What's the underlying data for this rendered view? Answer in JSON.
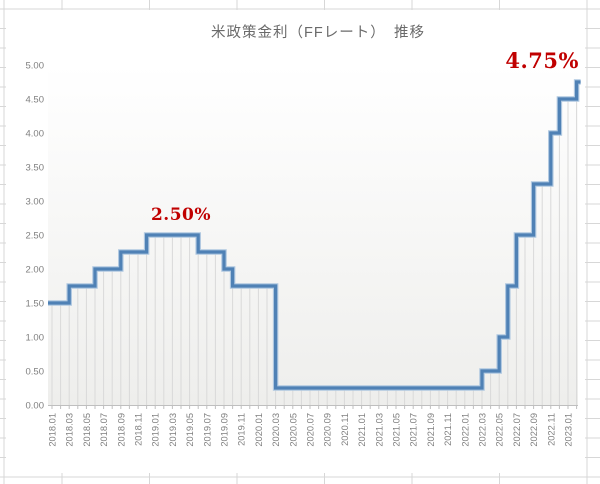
{
  "sheet": {
    "background_color": "#ffffff",
    "gridline_color": "#d7d7d7"
  },
  "chart": {
    "title": "米政策金利（FFレート）　推移",
    "annotations": [
      {
        "label": "2.50%",
        "x": "2019.04",
        "y": 2.5
      },
      {
        "label": "4.75%",
        "x": "2022.10",
        "y": 4.75
      }
    ],
    "colors": {
      "line": "#4f81b5",
      "line_halo": "#aec7e0",
      "annotation_red": "#c00000",
      "axis_label": "#7f7f7f",
      "title_gray": "#6a6a6a",
      "droplines": "#d9d9d9",
      "axis_line": "#bfbfbf",
      "plot_bg_top": "#ffffff",
      "plot_bg_bottom": "#eeeeec"
    },
    "chart_data": {
      "type": "line",
      "subtype": "step",
      "title": "米政策金利（FFレート）　推移",
      "xlabel": "",
      "ylabel": "",
      "ylim": [
        0,
        5
      ],
      "grid": "vertical-droplines-only",
      "legend_position": "none",
      "x": [
        "2018.01",
        "2018.02",
        "2018.03",
        "2018.04",
        "2018.05",
        "2018.06",
        "2018.07",
        "2018.08",
        "2018.09",
        "2018.10",
        "2018.11",
        "2018.12",
        "2019.01",
        "2019.02",
        "2019.03",
        "2019.04",
        "2019.05",
        "2019.06",
        "2019.07",
        "2019.08",
        "2019.09",
        "2019.10",
        "2019.11",
        "2019.12",
        "2020.01",
        "2020.02",
        "2020.03",
        "2020.04",
        "2020.05",
        "2020.06",
        "2020.07",
        "2020.08",
        "2020.09",
        "2020.10",
        "2020.11",
        "2020.12",
        "2021.01",
        "2021.02",
        "2021.03",
        "2021.04",
        "2021.05",
        "2021.06",
        "2021.07",
        "2021.08",
        "2021.09",
        "2021.10",
        "2021.11",
        "2021.12",
        "2022.01",
        "2022.02",
        "2022.03",
        "2022.04",
        "2022.05",
        "2022.06",
        "2022.07",
        "2022.08",
        "2022.09",
        "2022.10",
        "2022.11",
        "2022.12",
        "2023.01",
        "2023.02"
      ],
      "values": [
        1.5,
        1.5,
        1.75,
        1.75,
        1.75,
        2.0,
        2.0,
        2.0,
        2.25,
        2.25,
        2.25,
        2.5,
        2.5,
        2.5,
        2.5,
        2.5,
        2.5,
        2.25,
        2.25,
        2.25,
        2.0,
        1.75,
        1.75,
        1.75,
        1.75,
        1.75,
        0.25,
        0.25,
        0.25,
        0.25,
        0.25,
        0.25,
        0.25,
        0.25,
        0.25,
        0.25,
        0.25,
        0.25,
        0.25,
        0.25,
        0.25,
        0.25,
        0.25,
        0.25,
        0.25,
        0.25,
        0.25,
        0.25,
        0.25,
        0.25,
        0.5,
        0.5,
        1.0,
        1.75,
        2.5,
        2.5,
        3.25,
        3.25,
        4.0,
        4.5,
        4.5,
        4.75
      ],
      "yticks": [
        0,
        0.5,
        1,
        1.5,
        2,
        2.5,
        3,
        3.5,
        4,
        4.5,
        5
      ],
      "x_visible_ticks": [
        "2018.01",
        "2018.03",
        "2018.05",
        "2018.07",
        "2018.09",
        "2018.11",
        "2019.01",
        "2019.03",
        "2019.05",
        "2019.07",
        "2019.09",
        "2019.11",
        "2020.01",
        "2020.03",
        "2020.05",
        "2020.07",
        "2020.09",
        "2020.11",
        "2021.01",
        "2021.03",
        "2021.05",
        "2021.07",
        "2021.09",
        "2021.11",
        "2022.01",
        "2022.03",
        "2022.05",
        "2022.07",
        "2022.09",
        "2022.11",
        "2023.01"
      ]
    }
  }
}
